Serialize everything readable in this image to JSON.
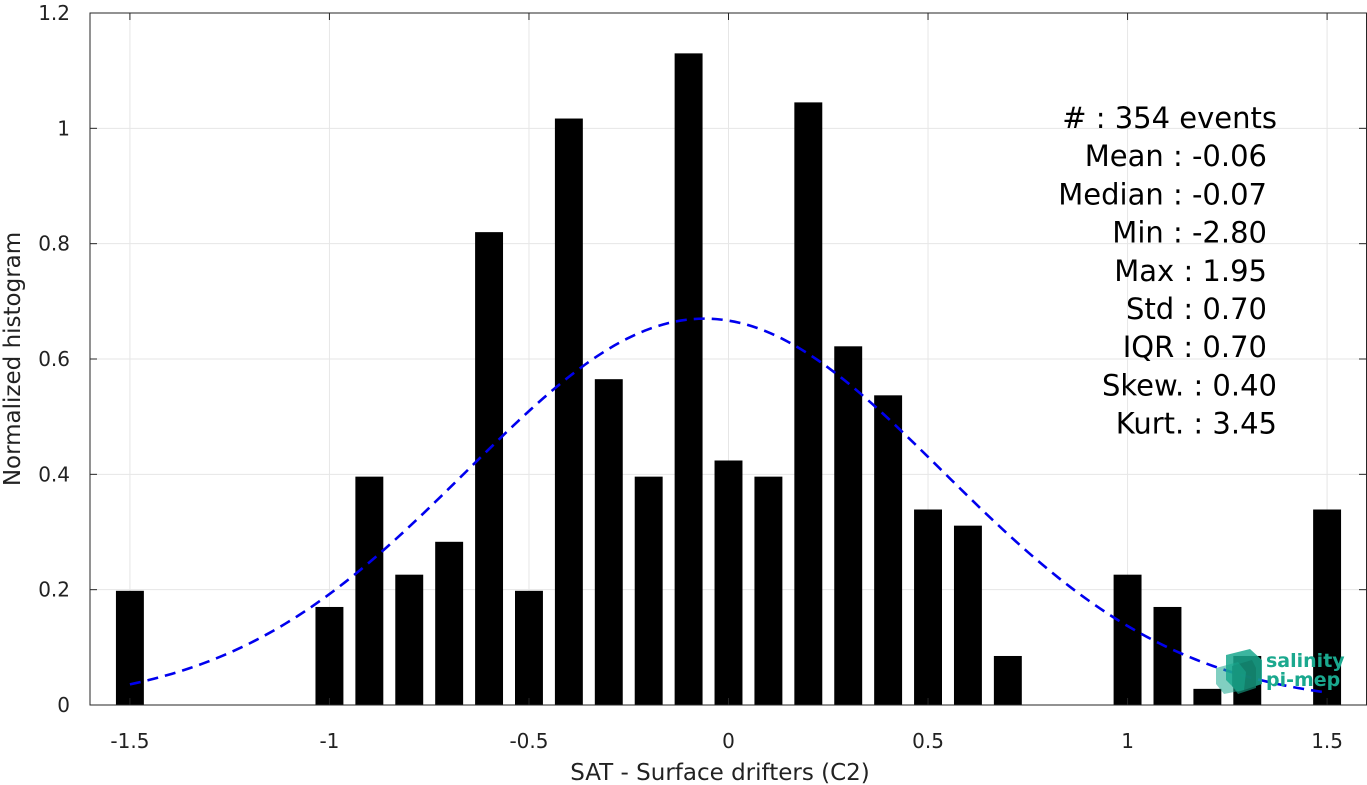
{
  "chart_data": {
    "type": "bar",
    "xlabel": "SAT - Surface drifters (C2)",
    "ylabel": "Normalized histogram",
    "xlim": [
      -1.6,
      1.6
    ],
    "ylim": [
      0,
      1.2
    ],
    "xticks": [
      -1.5,
      -1,
      -0.5,
      0,
      0.5,
      1,
      1.5
    ],
    "xtick_labels": [
      "-1.5",
      "-1",
      "-0.5",
      "0",
      "0.5",
      "1",
      "1.5"
    ],
    "yticks": [
      0,
      0.2,
      0.4,
      0.6,
      0.8,
      1,
      1.2
    ],
    "ytick_labels": [
      "0",
      "0.2",
      "0.4",
      "0.6",
      "0.8",
      "1",
      "1.2"
    ],
    "grid": true,
    "bar_color": "#000000",
    "bar_width": 0.07,
    "bins": [
      {
        "x": -1.5,
        "y": 0.198
      },
      {
        "x": -1.0,
        "y": 0.17
      },
      {
        "x": -0.9,
        "y": 0.396
      },
      {
        "x": -0.8,
        "y": 0.226
      },
      {
        "x": -0.7,
        "y": 0.283
      },
      {
        "x": -0.6,
        "y": 0.82
      },
      {
        "x": -0.5,
        "y": 0.198
      },
      {
        "x": -0.4,
        "y": 1.017
      },
      {
        "x": -0.3,
        "y": 0.565
      },
      {
        "x": -0.2,
        "y": 0.396
      },
      {
        "x": -0.1,
        "y": 1.13
      },
      {
        "x": 0.0,
        "y": 0.424
      },
      {
        "x": 0.1,
        "y": 0.396
      },
      {
        "x": 0.2,
        "y": 1.045
      },
      {
        "x": 0.3,
        "y": 0.622
      },
      {
        "x": 0.4,
        "y": 0.537
      },
      {
        "x": 0.5,
        "y": 0.339
      },
      {
        "x": 0.6,
        "y": 0.311
      },
      {
        "x": 0.7,
        "y": 0.085
      },
      {
        "x": 1.0,
        "y": 0.226
      },
      {
        "x": 1.1,
        "y": 0.17
      },
      {
        "x": 1.2,
        "y": 0.028
      },
      {
        "x": 1.3,
        "y": 0.085
      },
      {
        "x": 1.5,
        "y": 0.339
      }
    ],
    "fit_curve": {
      "type": "gaussian",
      "mean": -0.06,
      "std": 0.595,
      "peak": 0.67,
      "x_range": [
        -1.5,
        1.5
      ],
      "color": "#0000ee",
      "style": "dashed"
    },
    "stats": [
      "#  : 354 events",
      "Mean : -0.06",
      "Median : -0.07",
      "Min : -2.80",
      "Max : 1.95",
      "Std : 0.70",
      "IQR : 0.70",
      "Skew. : 0.40",
      "Kurt. : 3.45"
    ]
  },
  "logo": {
    "line1": "salinity",
    "line2": "pi-mep",
    "color": "#1aa88e"
  }
}
